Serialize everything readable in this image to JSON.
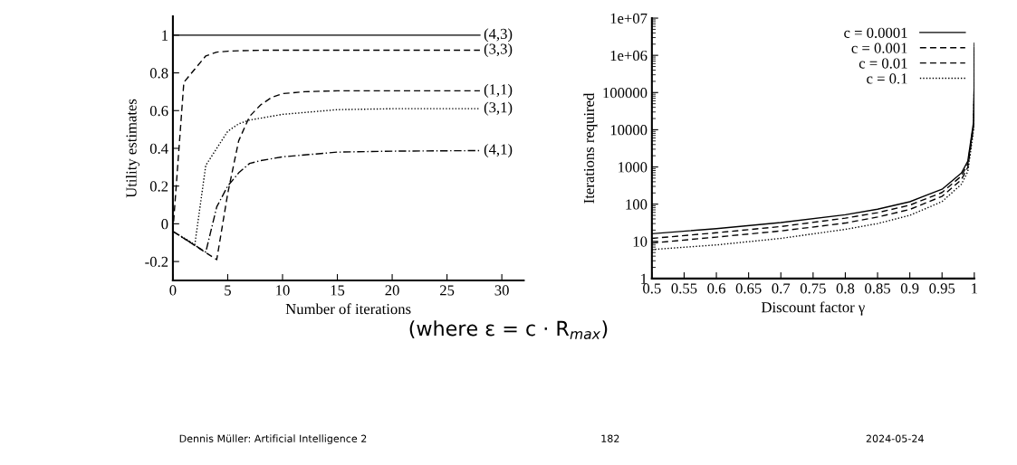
{
  "chart_data": [
    {
      "type": "line",
      "xlabel": "Number of iterations",
      "ylabel": "Utility estimates",
      "xlim": [
        0,
        32
      ],
      "xticks": [
        0,
        5,
        10,
        15,
        20,
        25,
        30
      ],
      "ylim": [
        -0.3,
        1.1
      ],
      "yticks": [
        -0.2,
        0,
        0.2,
        0.4,
        0.6,
        0.8,
        1
      ],
      "grid": false,
      "legend": false,
      "series": [
        {
          "name": "(4,3)",
          "color": "#000000",
          "line_style": "solid",
          "x": [
            0,
            28
          ],
          "values": [
            1,
            1
          ]
        },
        {
          "name": "(3,3)",
          "color": "#000000",
          "line_style": "dashed",
          "x": [
            0,
            1,
            3,
            4,
            5,
            6,
            8,
            10,
            15,
            20,
            28
          ],
          "values": [
            -0.04,
            0.75,
            0.89,
            0.91,
            0.915,
            0.917,
            0.92,
            0.92,
            0.92,
            0.92,
            0.92
          ]
        },
        {
          "name": "(1,1)",
          "color": "#000000",
          "line_style": "dashed",
          "x": [
            0,
            4,
            5,
            6,
            7,
            8,
            9,
            10,
            12,
            15,
            20,
            28
          ],
          "values": [
            -0.04,
            -0.19,
            0.16,
            0.44,
            0.57,
            0.63,
            0.67,
            0.69,
            0.7,
            0.705,
            0.705,
            0.705
          ]
        },
        {
          "name": "(3,1)",
          "color": "#000000",
          "line_style": "dotted",
          "x": [
            0,
            2,
            3,
            4,
            5,
            6,
            7,
            8,
            10,
            15,
            20,
            28
          ],
          "values": [
            -0.04,
            -0.11,
            0.31,
            0.4,
            0.49,
            0.53,
            0.55,
            0.56,
            0.58,
            0.605,
            0.61,
            0.61
          ]
        },
        {
          "name": "(4,1)",
          "color": "#000000",
          "line_style": "dashdot",
          "x": [
            0,
            3,
            4,
            5,
            6,
            7,
            8,
            10,
            15,
            20,
            28
          ],
          "values": [
            -0.04,
            -0.15,
            0.09,
            0.2,
            0.27,
            0.32,
            0.335,
            0.355,
            0.38,
            0.385,
            0.388
          ]
        }
      ]
    },
    {
      "type": "line",
      "xlabel": "Discount factor γ",
      "ylabel": "Iterations required",
      "log": "y",
      "xlim": [
        0.5,
        1
      ],
      "xticks": [
        0.5,
        0.55,
        0.6,
        0.65,
        0.7,
        0.75,
        0.8,
        0.85,
        0.9,
        0.95,
        1
      ],
      "ylim": [
        1,
        10000000
      ],
      "yticks": [
        1,
        10,
        100,
        1000,
        10000,
        100000,
        {
          "value": 1000000,
          "label": "1e+06"
        },
        {
          "value": 10000000,
          "label": "1e+07"
        }
      ],
      "grid": false,
      "legend": "top right",
      "x": [
        0.5,
        0.6,
        0.7,
        0.8,
        0.85,
        0.9,
        0.95,
        0.98,
        0.99,
        0.999,
        0.9999,
        0.99999
      ],
      "series": [
        {
          "name": "c = 0.0001",
          "color": "#000000",
          "line_style": "solid",
          "values": [
            16,
            22,
            32,
            52,
            73,
            116,
            251,
            684,
            1444,
            16800,
            191000,
            2140000
          ]
        },
        {
          "name": "c = 0.001",
          "color": "#000000",
          "line_style": "dashed",
          "values": [
            12,
            17,
            25,
            42,
            59,
            94,
            206,
            570,
            1210,
            14500,
            168000,
            1910000
          ]
        },
        {
          "name": "c = 0.01",
          "color": "#000000",
          "line_style": "dashed",
          "values": [
            9,
            13,
            19,
            31,
            45,
            72,
            162,
            456,
            985,
            12200,
            145000,
            1680000
          ]
        },
        {
          "name": "c = 0.1",
          "color": "#000000",
          "line_style": "dotted",
          "values": [
            6,
            8,
            12,
            21,
            30,
            50,
            117,
            342,
            756,
            9900,
            122000,
            1450000
          ]
        }
      ],
      "annotations": [
        "(where ε = c · R$_{max}$)",
        "Dennis Müller: Artificial Intelligence 2",
        "182",
        "2024-05-24"
      ]
    }
  ]
}
